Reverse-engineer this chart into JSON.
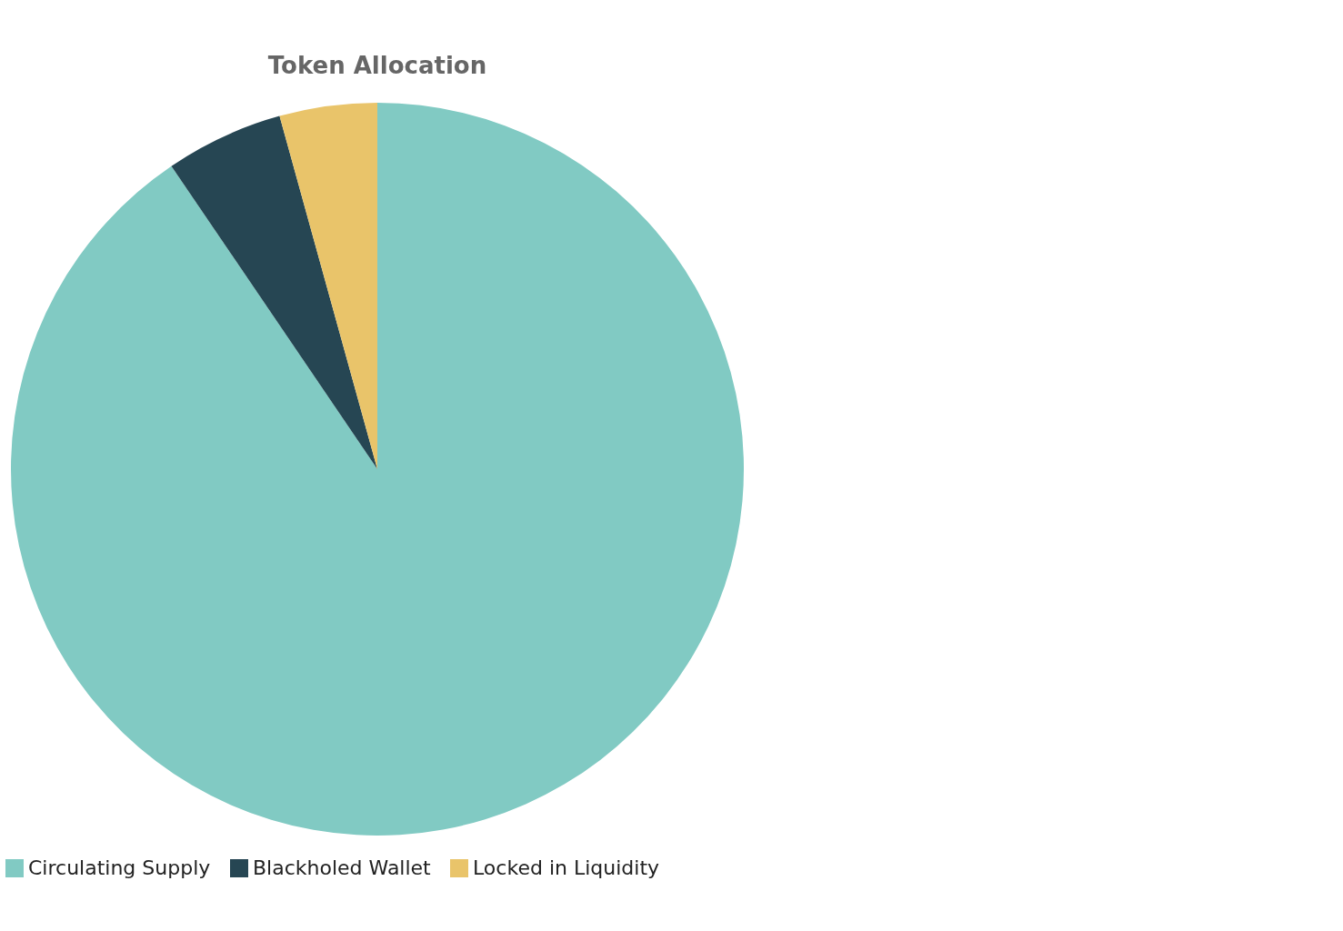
{
  "chart_data": {
    "type": "pie",
    "title": "Token Allocation",
    "categories": [
      "Circulating Supply",
      "Blackholed Wallet",
      "Locked in Liquidity"
    ],
    "values": [
      90.5,
      5.2,
      4.3
    ],
    "colors": [
      "#81cac3",
      "#264653",
      "#e9c46a"
    ],
    "legend": "bottom"
  }
}
